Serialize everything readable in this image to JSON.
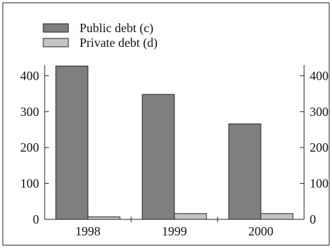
{
  "chart_data": {
    "type": "bar",
    "title": "",
    "xlabel": "",
    "ylabel": "",
    "categories": [
      "1998",
      "1999",
      "2000"
    ],
    "series": [
      {
        "name": "Public debt (c)",
        "values": [
          427,
          348,
          266
        ],
        "color": "#7f7f7f"
      },
      {
        "name": "Private debt (d)",
        "values": [
          7,
          16,
          16
        ],
        "color": "#c4c4c4"
      }
    ],
    "ylim": [
      0,
      430
    ],
    "yticks": [
      0,
      100,
      200,
      300,
      400
    ],
    "secondary_axis": "right",
    "grid": false,
    "legend": "top-left"
  }
}
